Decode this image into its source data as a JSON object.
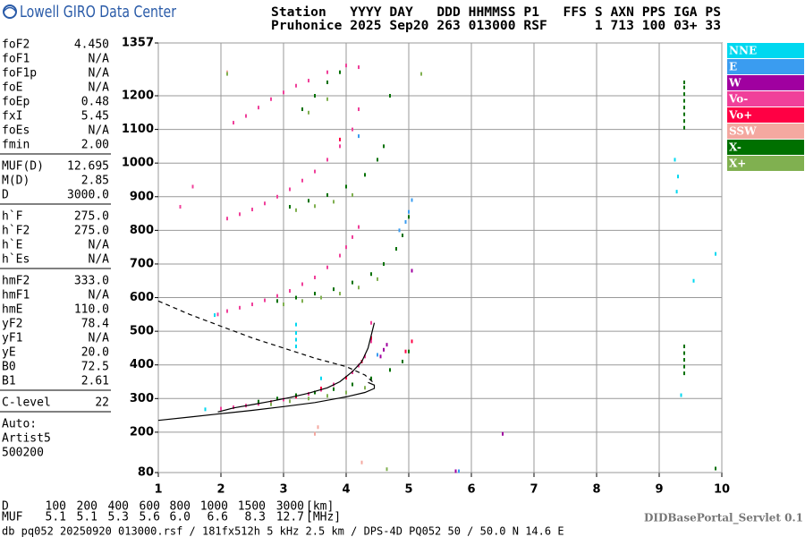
{
  "header": {
    "logo": "Lowell GIRO Data Center",
    "line1": "Station   YYYY DAY   DDD HHMMSS P1   FFS S AXN PPS IGA PS",
    "line2": "Pruhonice 2025 Sep20 263 013000 RSF      1 713 100 03+ 33"
  },
  "parameters": [
    [
      [
        "foF2",
        "4.450"
      ],
      [
        "foF1",
        "N/A"
      ],
      [
        "foF1p",
        "N/A"
      ],
      [
        "foE",
        "N/A"
      ],
      [
        "foEp",
        "0.48"
      ],
      [
        "fxI",
        "5.45"
      ],
      [
        "foEs",
        "N/A"
      ],
      [
        "fmin",
        "2.00"
      ]
    ],
    [
      [
        "MUF(D)",
        "12.695"
      ],
      [
        "M(D)",
        "2.85"
      ],
      [
        "D",
        "3000.0"
      ]
    ],
    [
      [
        "h`F",
        "275.0"
      ],
      [
        "h`F2",
        "275.0"
      ],
      [
        "h`E",
        "N/A"
      ],
      [
        "h`Es",
        "N/A"
      ]
    ],
    [
      [
        "hmF2",
        "333.0"
      ],
      [
        "hmF1",
        "N/A"
      ],
      [
        "hmE",
        "110.0"
      ],
      [
        "yF2",
        "78.4"
      ],
      [
        "yF1",
        "N/A"
      ],
      [
        "yE",
        "20.0"
      ],
      [
        "B0",
        "72.5"
      ],
      [
        "B1",
        "2.61"
      ]
    ],
    [
      [
        "C-level",
        "22"
      ]
    ]
  ],
  "operator": [
    "Auto:",
    "Artist5",
    "500200"
  ],
  "muf_table": {
    "rows": [
      [
        "D",
        "100",
        "200",
        "400",
        "600",
        "800",
        "1000",
        "1500",
        "3000",
        "[km]"
      ],
      [
        "MUF",
        "5.1",
        "5.1",
        "5.3",
        "5.6",
        "6.0",
        "6.6",
        "8.3",
        "12.7",
        "[MHz]"
      ]
    ]
  },
  "footer": {
    "file": "db pq052 20250920 013000.rsf / 181fx512h 5 kHz 2.5 km / DPS-4D PQ052 50 / 50.0 N 14.6 E",
    "servlet": "DIDBasePortal_Servlet 0.1"
  },
  "chart_data": {
    "type": "scatter",
    "xlim": [
      1,
      10
    ],
    "xticks": [
      1,
      2,
      3,
      4,
      5,
      6,
      7,
      8,
      9,
      10
    ],
    "ylim": [
      80,
      1357
    ],
    "yticks": [
      80,
      200,
      300,
      400,
      500,
      600,
      700,
      800,
      900,
      1000,
      1100,
      1200,
      1357
    ],
    "grid": true,
    "series": [
      {
        "name": "NNE",
        "color": "#00d8f0",
        "x": [
          3.2,
          3.2,
          3.2,
          3.2,
          1.9,
          1.75,
          9.25,
          9.3,
          9.28,
          9.55,
          9.9,
          3.6,
          9.35
        ],
        "y": [
          455,
          475,
          495,
          520,
          548,
          268,
          1010,
          960,
          915,
          650,
          730,
          360,
          310
        ]
      },
      {
        "name": "E",
        "color": "#3a9cf0",
        "x": [
          4.95,
          5.0,
          5.05,
          4.85,
          4.5,
          5.8,
          4.2
        ],
        "y": [
          825,
          855,
          890,
          800,
          430,
          84,
          1080
        ]
      },
      {
        "name": "W",
        "color": "#a000a0",
        "x": [
          4.55,
          4.6,
          4.65,
          5.05,
          6.5,
          5.75
        ],
        "y": [
          425,
          445,
          460,
          680,
          195,
          84
        ]
      },
      {
        "name": "Vo-",
        "color": "#f0409a",
        "x": [
          2.0,
          2.2,
          2.4,
          2.6,
          2.8,
          3.0,
          3.2,
          3.4,
          3.6,
          3.8,
          4.0,
          4.1,
          4.2,
          4.3,
          4.4,
          1.95,
          2.1,
          2.3,
          2.5,
          2.7,
          2.9,
          3.1,
          3.3,
          3.5,
          3.7,
          3.9,
          4.0,
          4.1,
          4.2,
          2.1,
          2.3,
          2.5,
          2.7,
          2.9,
          3.1,
          3.3,
          3.5,
          3.7,
          3.9,
          4.1,
          4.2,
          2.2,
          2.4,
          2.6,
          2.8,
          3.0,
          3.2,
          3.4,
          3.7,
          4.0,
          4.2,
          1.55,
          1.35,
          4.4
        ],
        "y": [
          270,
          274,
          279,
          284,
          290,
          297,
          305,
          314,
          326,
          342,
          362,
          378,
          398,
          425,
          470,
          550,
          560,
          570,
          580,
          592,
          605,
          620,
          640,
          660,
          690,
          725,
          750,
          780,
          810,
          835,
          848,
          862,
          880,
          900,
          922,
          948,
          975,
          1010,
          1050,
          1100,
          1160,
          1120,
          1140,
          1165,
          1190,
          1210,
          1230,
          1245,
          1270,
          1290,
          1285,
          930,
          870,
          525
        ]
      },
      {
        "name": "Vo+",
        "color": "#ff0044",
        "x": [
          3.2,
          3.6,
          4.0,
          4.25,
          4.4,
          4.95,
          5.05,
          3.9
        ],
        "y": [
          306,
          330,
          362,
          410,
          480,
          440,
          470,
          1070
        ]
      },
      {
        "name": "SSW",
        "color": "#f4a8a0",
        "x": [
          3.5,
          3.55,
          4.25,
          2.1
        ],
        "y": [
          195,
          215,
          110,
          1270
        ]
      },
      {
        "name": "X-",
        "color": "#007000",
        "x": [
          2.6,
          2.9,
          3.2,
          3.5,
          3.8,
          4.1,
          4.4,
          4.7,
          4.9,
          5.0,
          2.9,
          3.2,
          3.5,
          3.8,
          4.1,
          4.4,
          4.6,
          4.8,
          4.9,
          5.0,
          3.1,
          3.4,
          3.7,
          4.0,
          4.3,
          4.5,
          4.6,
          3.3,
          3.5,
          3.7,
          3.9,
          9.4,
          9.4,
          9.4,
          9.4,
          9.4,
          9.4,
          9.4,
          9.4,
          9.4,
          9.4,
          9.4,
          9.4,
          9.4,
          9.9,
          4.7
        ],
        "y": [
          291,
          300,
          310,
          318,
          328,
          342,
          360,
          385,
          410,
          440,
          590,
          600,
          612,
          625,
          645,
          670,
          700,
          745,
          785,
          840,
          870,
          888,
          905,
          930,
          965,
          1010,
          1050,
          1160,
          1200,
          1240,
          1270,
          1105,
          1125,
          1145,
          1165,
          1185,
          1205,
          1225,
          1240,
          375,
          395,
          415,
          435,
          455,
          92,
          1200
        ]
      },
      {
        "name": "X+",
        "color": "#80b050",
        "x": [
          2.8,
          3.1,
          3.4,
          3.7,
          4.0,
          4.3,
          3.0,
          3.3,
          3.6,
          3.9,
          4.2,
          4.5,
          3.2,
          3.5,
          3.8,
          4.1,
          3.4,
          3.7,
          2.1,
          4.65,
          5.2
        ],
        "y": [
          283,
          292,
          300,
          308,
          318,
          332,
          580,
          590,
          600,
          612,
          630,
          655,
          860,
          872,
          885,
          905,
          1150,
          1190,
          1265,
          90,
          1265
        ]
      }
    ],
    "lines": [
      {
        "color": "#000000",
        "dashed": false,
        "x": [
          1.0,
          1.5,
          2.0,
          2.5,
          3.0,
          3.5,
          4.0,
          4.3,
          4.45,
          4.45,
          4.35
        ],
        "y": [
          235,
          245,
          255,
          265,
          276,
          288,
          305,
          318,
          330,
          340,
          348
        ]
      },
      {
        "color": "#000000",
        "dashed": false,
        "x": [
          1.95,
          2.2,
          2.5,
          2.8,
          3.1,
          3.4,
          3.7,
          3.9,
          4.1,
          4.25,
          4.35,
          4.45
        ],
        "y": [
          260,
          272,
          282,
          292,
          303,
          316,
          332,
          350,
          380,
          410,
          450,
          525
        ]
      },
      {
        "color": "#000000",
        "dashed": true,
        "x": [
          1.0,
          1.5,
          2.0,
          2.5,
          3.0,
          3.5,
          4.0,
          4.3,
          4.45
        ],
        "y": [
          590,
          550,
          515,
          480,
          450,
          420,
          395,
          370,
          345
        ]
      }
    ]
  }
}
